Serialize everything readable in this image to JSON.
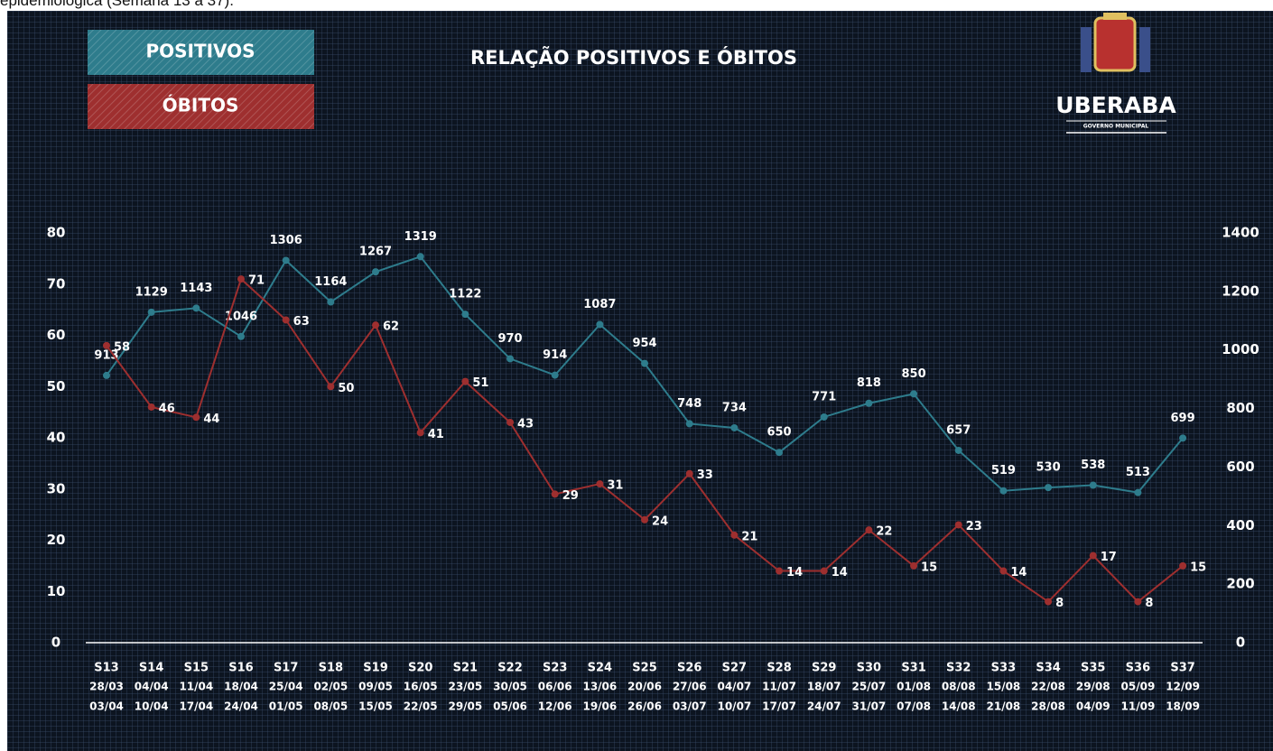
{
  "caption": "epidemiológica (Semana 13 a 37).",
  "logo": {
    "name": "UBERABA",
    "subtitle": "GOVERNO MUNICIPAL"
  },
  "chart_data": {
    "type": "line",
    "title": "RELAÇÃO POSITIVOS E ÓBITOS",
    "categories": [
      "S13",
      "S14",
      "S15",
      "S16",
      "S17",
      "S18",
      "S19",
      "S20",
      "S21",
      "S22",
      "S23",
      "S24",
      "S25",
      "S26",
      "S27",
      "S28",
      "S29",
      "S30",
      "S31",
      "S32",
      "S33",
      "S34",
      "S35",
      "S36",
      "S37"
    ],
    "period_start": [
      "28/03",
      "04/04",
      "11/04",
      "18/04",
      "25/04",
      "02/05",
      "09/05",
      "16/05",
      "23/05",
      "30/05",
      "06/06",
      "13/06",
      "20/06",
      "27/06",
      "04/07",
      "11/07",
      "18/07",
      "25/07",
      "01/08",
      "08/08",
      "15/08",
      "22/08",
      "29/08",
      "05/09",
      "12/09"
    ],
    "period_end": [
      "03/04",
      "10/04",
      "17/04",
      "24/04",
      "01/05",
      "08/05",
      "15/05",
      "22/05",
      "29/05",
      "05/06",
      "12/06",
      "19/06",
      "26/06",
      "03/07",
      "10/07",
      "17/07",
      "24/07",
      "31/07",
      "07/08",
      "14/08",
      "21/08",
      "28/08",
      "04/09",
      "11/09",
      "18/09"
    ],
    "series": [
      {
        "name": "POSITIVOS",
        "color": "#2e7c8c",
        "axis": "y2",
        "values": [
          913,
          1129,
          1143,
          1046,
          1306,
          1164,
          1267,
          1319,
          1122,
          970,
          914,
          1087,
          954,
          748,
          734,
          650,
          771,
          818,
          850,
          657,
          519,
          530,
          538,
          513,
          699
        ]
      },
      {
        "name": "ÓBITOS",
        "color": "#9e2f2f",
        "values": [
          58,
          46,
          44,
          71,
          63,
          50,
          62,
          41,
          51,
          43,
          29,
          31,
          24,
          33,
          21,
          14,
          14,
          22,
          15,
          23,
          14,
          8,
          17,
          8,
          15
        ]
      }
    ],
    "ylim": [
      0,
      80
    ],
    "yticks": [
      0,
      10,
      20,
      30,
      40,
      50,
      60,
      70,
      80
    ],
    "y2lim": [
      0,
      1400
    ],
    "y2ticks": [
      0,
      200,
      400,
      600,
      800,
      1000,
      1200,
      1400
    ]
  }
}
